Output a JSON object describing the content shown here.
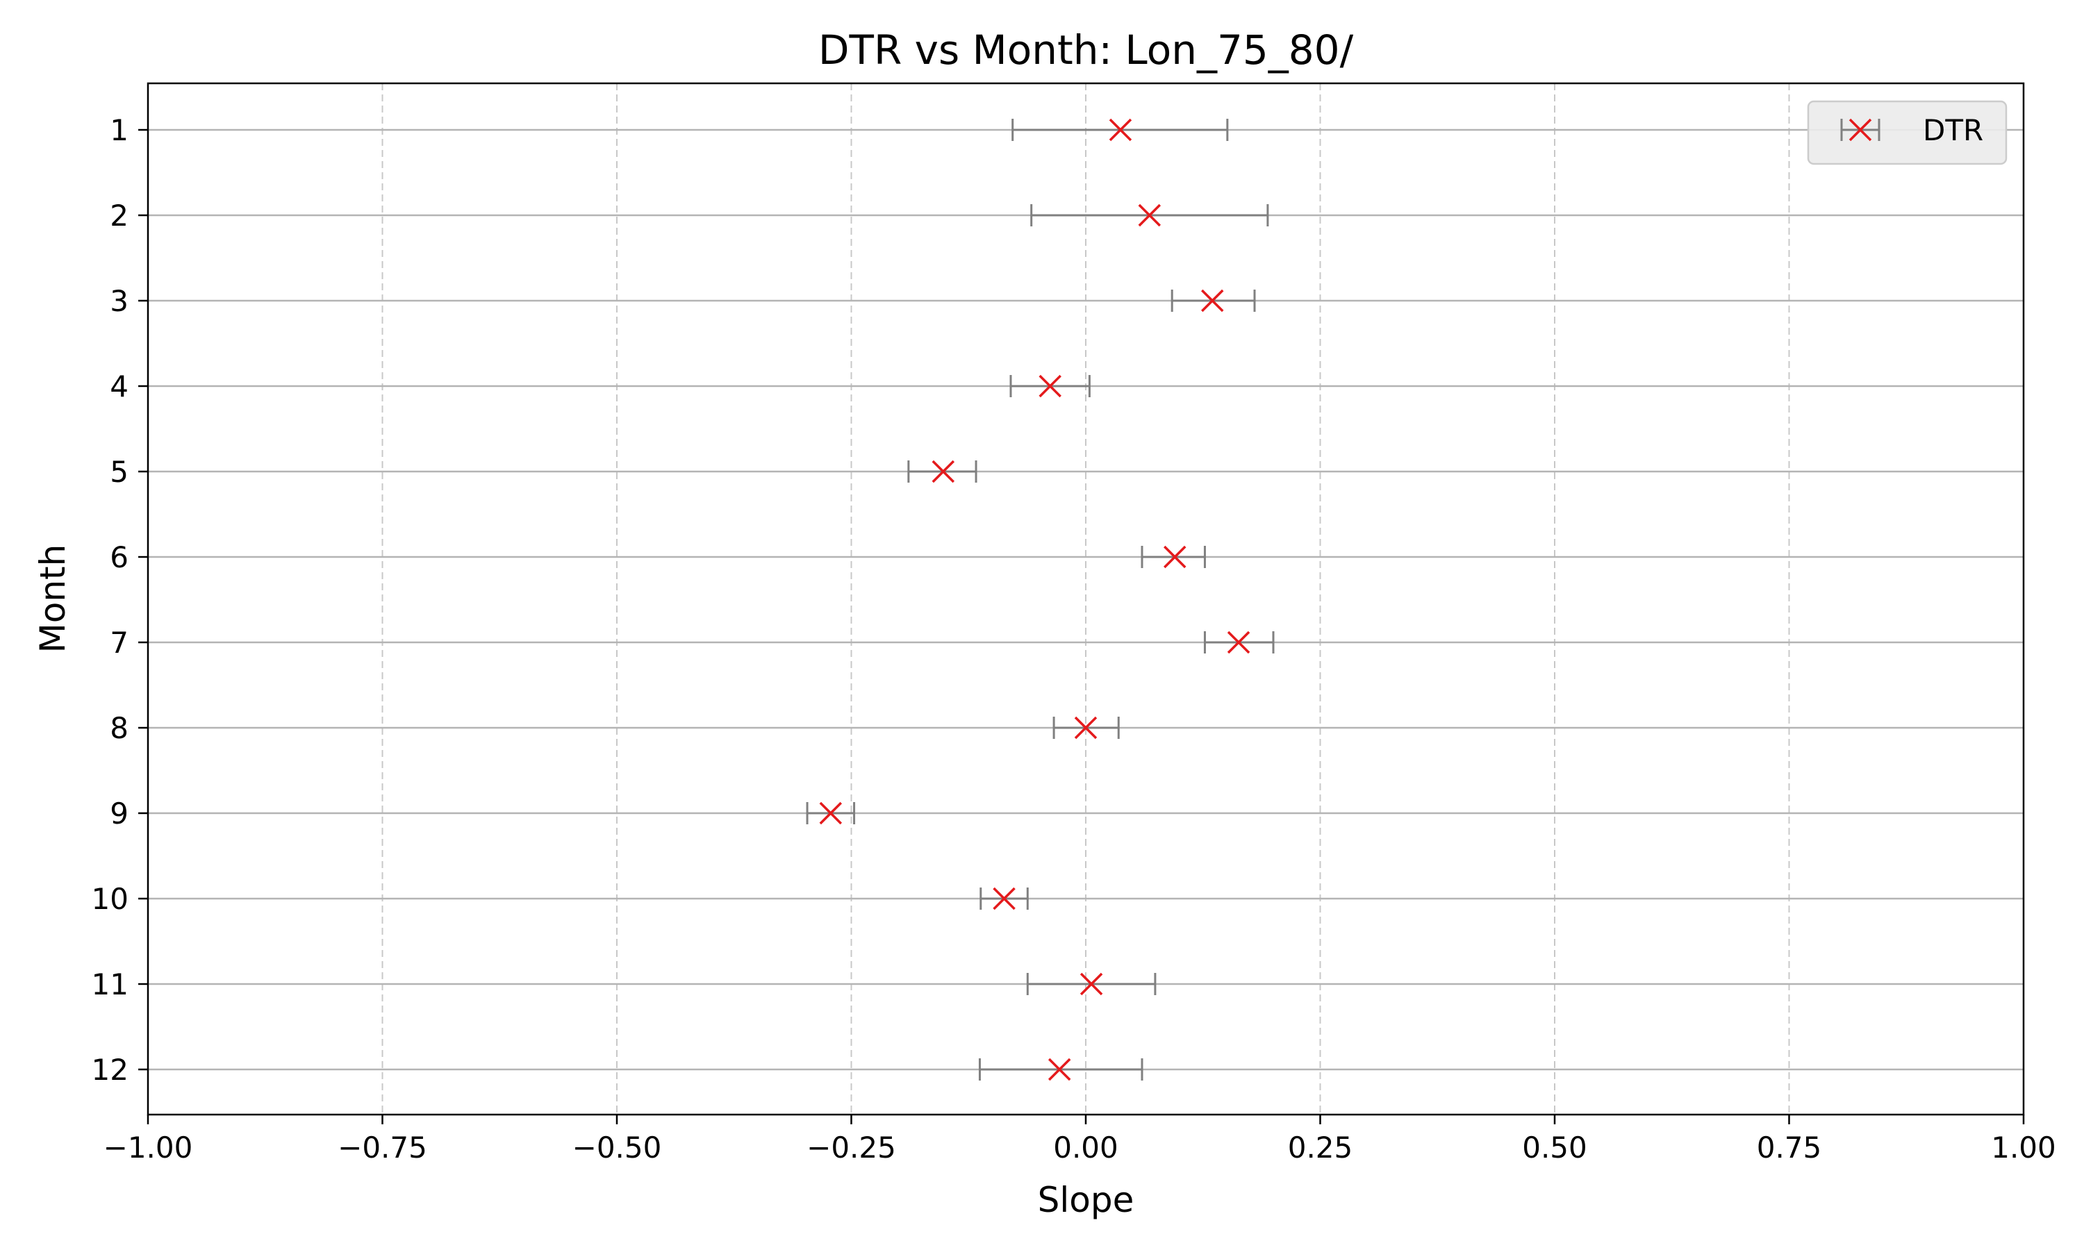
{
  "chart_data": {
    "type": "scatter",
    "title": "DTR vs Month: Lon_75_80/",
    "xlabel": "Slope",
    "ylabel": "Month",
    "xlim": [
      -1.0,
      1.0
    ],
    "x_ticks": [
      "−1.00",
      "−0.75",
      "−0.50",
      "−0.25",
      "0.00",
      "0.25",
      "0.50",
      "0.75",
      "1.00"
    ],
    "x_tick_values": [
      -1.0,
      -0.75,
      -0.5,
      -0.25,
      0.0,
      0.25,
      0.5,
      0.75,
      1.0
    ],
    "y_categories": [
      "1",
      "2",
      "3",
      "4",
      "5",
      "6",
      "7",
      "8",
      "9",
      "10",
      "11",
      "12"
    ],
    "y_inverted": true,
    "grid": "x dashed, y solid",
    "legend_position": "top-right",
    "series": [
      {
        "name": "DTR",
        "marker": "x",
        "color": "#e41a1c",
        "errorbar_color": "#808080",
        "points": [
          {
            "month": 1,
            "slope": 0.037,
            "lower": -0.078,
            "upper": 0.151
          },
          {
            "month": 2,
            "slope": 0.068,
            "lower": -0.058,
            "upper": 0.194
          },
          {
            "month": 3,
            "slope": 0.135,
            "lower": 0.092,
            "upper": 0.18
          },
          {
            "month": 4,
            "slope": -0.038,
            "lower": -0.08,
            "upper": 0.004
          },
          {
            "month": 5,
            "slope": -0.152,
            "lower": -0.189,
            "upper": -0.117
          },
          {
            "month": 6,
            "slope": 0.095,
            "lower": 0.06,
            "upper": 0.127
          },
          {
            "month": 7,
            "slope": 0.163,
            "lower": 0.127,
            "upper": 0.2
          },
          {
            "month": 8,
            "slope": 0.0,
            "lower": -0.034,
            "upper": 0.035
          },
          {
            "month": 9,
            "slope": -0.272,
            "lower": -0.297,
            "upper": -0.247
          },
          {
            "month": 10,
            "slope": -0.087,
            "lower": -0.112,
            "upper": -0.062
          },
          {
            "month": 11,
            "slope": 0.006,
            "lower": -0.062,
            "upper": 0.074
          },
          {
            "month": 12,
            "slope": -0.028,
            "lower": -0.113,
            "upper": 0.06
          }
        ]
      }
    ]
  }
}
